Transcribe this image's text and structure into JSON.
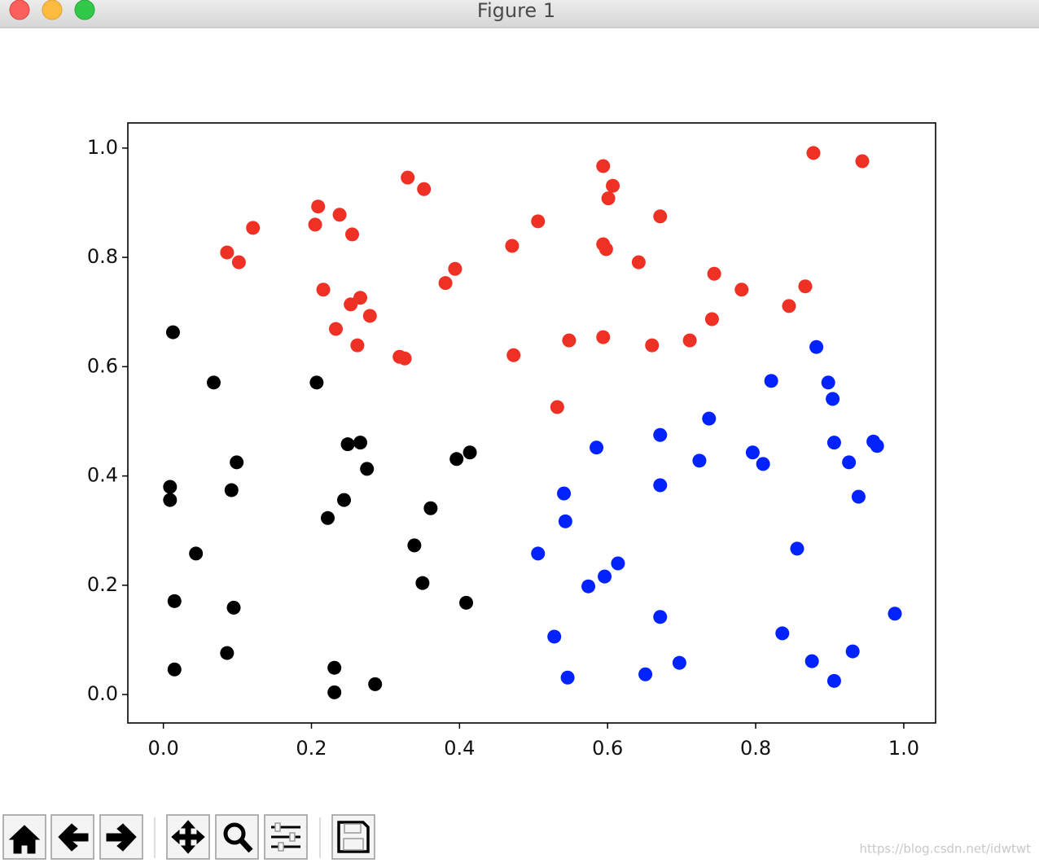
{
  "window": {
    "title": "Figure 1"
  },
  "watermark": "https://blog.csdn.net/idwtwt",
  "chart_data": {
    "type": "scatter",
    "xlim": [
      -0.048,
      1.043
    ],
    "ylim": [
      -0.052,
      1.046
    ],
    "xticks": [
      {
        "value": 0,
        "label": "0.0"
      },
      0.2,
      0.4,
      0.6,
      0.8,
      {
        "value": 1,
        "label": "1.0"
      }
    ],
    "yticks": [
      {
        "value": 0,
        "label": "0.0"
      },
      0.2,
      0.4,
      0.6,
      0.8,
      {
        "value": 1,
        "label": "1.0"
      }
    ],
    "series": [
      {
        "color": "#ee3124",
        "x": [
          0.086,
          0.102,
          0.121,
          0.205,
          0.209,
          0.238,
          0.255,
          0.216,
          0.253,
          0.266,
          0.279,
          0.233,
          0.262,
          0.319,
          0.326,
          0.33,
          0.352,
          0.381,
          0.394,
          0.471,
          0.473,
          0.506,
          0.532,
          0.548,
          0.594,
          0.607,
          0.601,
          0.594,
          0.598,
          0.594,
          0.642,
          0.671,
          0.66,
          0.711,
          0.744,
          0.741,
          0.781,
          0.845,
          0.867,
          0.878,
          0.944
        ],
        "values": [
          0.809,
          0.791,
          0.854,
          0.86,
          0.893,
          0.878,
          0.842,
          0.741,
          0.714,
          0.726,
          0.693,
          0.669,
          0.639,
          0.618,
          0.615,
          0.946,
          0.925,
          0.753,
          0.779,
          0.821,
          0.621,
          0.866,
          0.526,
          0.648,
          0.967,
          0.931,
          0.908,
          0.824,
          0.815,
          0.654,
          0.791,
          0.875,
          0.639,
          0.648,
          0.77,
          0.687,
          0.741,
          0.711,
          0.747,
          0.991,
          0.976
        ]
      },
      {
        "color": "#000000",
        "x": [
          0.013,
          0.068,
          0.207,
          0.009,
          0.009,
          0.092,
          0.099,
          0.044,
          0.015,
          0.095,
          0.015,
          0.086,
          0.231,
          0.231,
          0.286,
          0.222,
          0.244,
          0.249,
          0.266,
          0.275,
          0.339,
          0.35,
          0.361,
          0.396,
          0.414,
          0.409
        ],
        "values": [
          0.663,
          0.571,
          0.571,
          0.38,
          0.356,
          0.374,
          0.425,
          0.258,
          0.171,
          0.159,
          0.046,
          0.076,
          0.049,
          0.004,
          0.019,
          0.323,
          0.356,
          0.458,
          0.461,
          0.413,
          0.273,
          0.204,
          0.341,
          0.431,
          0.443,
          0.168
        ]
      },
      {
        "color": "#0022ff",
        "x": [
          0.882,
          0.821,
          0.898,
          0.904,
          0.737,
          0.671,
          0.585,
          0.796,
          0.81,
          0.724,
          0.906,
          0.959,
          0.964,
          0.926,
          0.939,
          0.671,
          0.541,
          0.543,
          0.506,
          0.856,
          0.614,
          0.596,
          0.574,
          0.671,
          0.528,
          0.836,
          0.988,
          0.546,
          0.651,
          0.697,
          0.876,
          0.931,
          0.906
        ],
        "values": [
          0.636,
          0.574,
          0.571,
          0.541,
          0.505,
          0.475,
          0.452,
          0.443,
          0.422,
          0.428,
          0.461,
          0.463,
          0.455,
          0.425,
          0.362,
          0.383,
          0.368,
          0.317,
          0.258,
          0.267,
          0.24,
          0.216,
          0.198,
          0.142,
          0.106,
          0.112,
          0.148,
          0.031,
          0.037,
          0.058,
          0.061,
          0.079,
          0.025
        ]
      }
    ]
  }
}
